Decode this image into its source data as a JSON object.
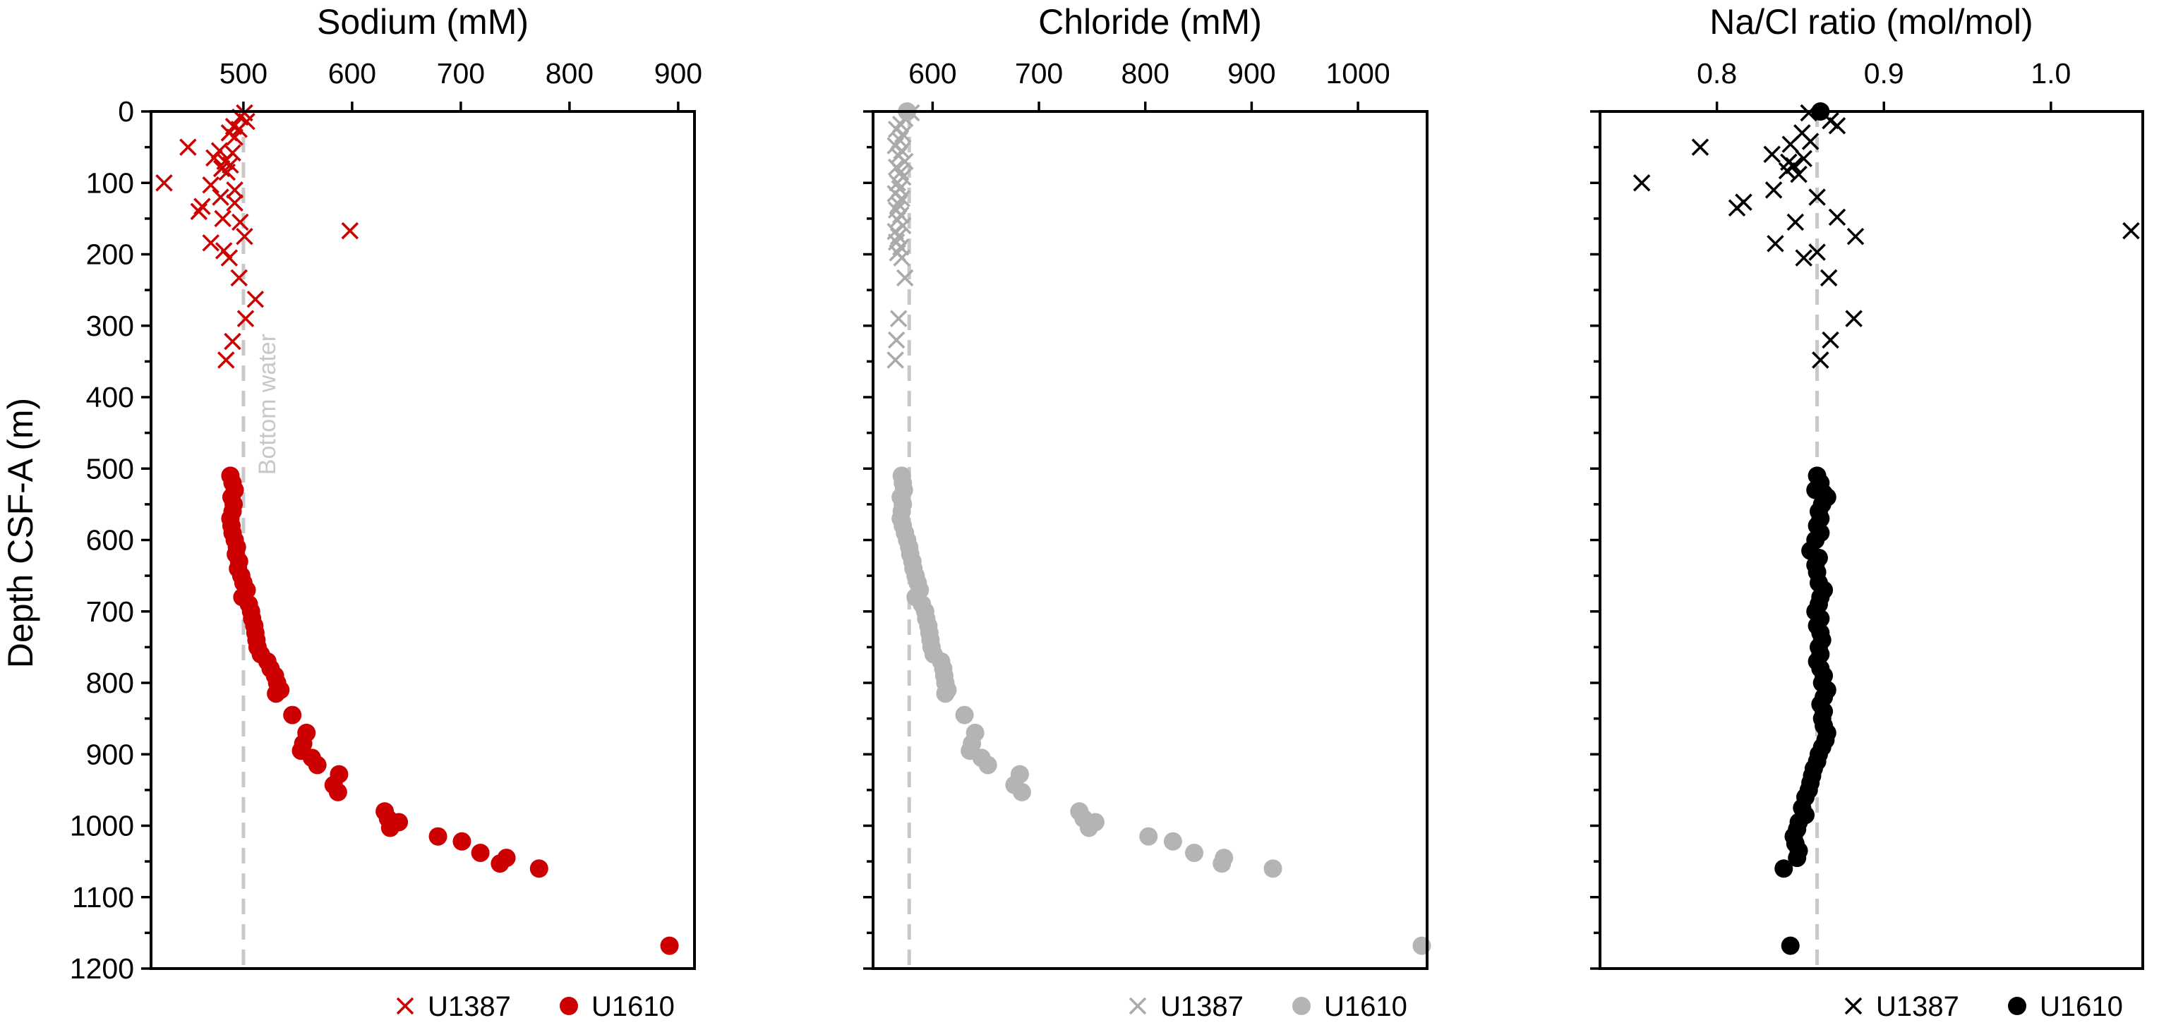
{
  "y_axis": {
    "label": "Depth CSF-A (m)",
    "range": [
      0,
      1200
    ],
    "ticks": [
      0,
      100,
      200,
      300,
      400,
      500,
      600,
      700,
      800,
      900,
      1000,
      1100,
      1200
    ],
    "inverted": true
  },
  "chart_data": [
    {
      "type": "scatter",
      "title": "Sodium (mM)",
      "xlim": [
        415,
        915
      ],
      "xticks": [
        500,
        600,
        700,
        800,
        900
      ],
      "reference_line": {
        "x": 500,
        "label": "Bottom water",
        "color": "#c8c8c8"
      },
      "legend_position": "bottom-right",
      "series": [
        {
          "name": "U1387",
          "marker": "x",
          "color": "#cc0000",
          "points": [
            [
              501,
              2
            ],
            [
              497,
              8
            ],
            [
              503,
              14
            ],
            [
              491,
              21
            ],
            [
              496,
              25
            ],
            [
              487,
              30
            ],
            [
              492,
              36
            ],
            [
              449,
              50
            ],
            [
              478,
              55
            ],
            [
              490,
              58
            ],
            [
              473,
              65
            ],
            [
              483,
              70
            ],
            [
              488,
              75
            ],
            [
              480,
              80
            ],
            [
              485,
              85
            ],
            [
              427,
              100
            ],
            [
              470,
              103
            ],
            [
              492,
              110
            ],
            [
              479,
              120
            ],
            [
              492,
              128
            ],
            [
              462,
              133
            ],
            [
              459,
              140
            ],
            [
              481,
              150
            ],
            [
              497,
              155
            ],
            [
              598,
              167
            ],
            [
              501,
              175
            ],
            [
              470,
              184
            ],
            [
              482,
              195
            ],
            [
              487,
              205
            ],
            [
              496,
              233
            ],
            [
              511,
              263
            ],
            [
              502,
              290
            ],
            [
              490,
              322
            ],
            [
              484,
              348
            ]
          ]
        },
        {
          "name": "U1610",
          "marker": "circle",
          "color": "#cc0000",
          "points": [
            [
              488,
              510
            ],
            [
              490,
              520
            ],
            [
              492,
              530
            ],
            [
              489,
              540
            ],
            [
              491,
              550
            ],
            [
              490,
              560
            ],
            [
              488,
              570
            ],
            [
              489,
              580
            ],
            [
              490,
              590
            ],
            [
              492,
              600
            ],
            [
              494,
              610
            ],
            [
              493,
              620
            ],
            [
              496,
              630
            ],
            [
              495,
              640
            ],
            [
              498,
              650
            ],
            [
              500,
              660
            ],
            [
              503,
              670
            ],
            [
              499,
              680
            ],
            [
              505,
              690
            ],
            [
              507,
              700
            ],
            [
              508,
              710
            ],
            [
              510,
              720
            ],
            [
              511,
              730
            ],
            [
              512,
              740
            ],
            [
              513,
              750
            ],
            [
              516,
              760
            ],
            [
              522,
              770
            ],
            [
              525,
              780
            ],
            [
              529,
              790
            ],
            [
              531,
              800
            ],
            [
              534,
              810
            ],
            [
              530,
              815
            ],
            [
              545,
              845
            ],
            [
              558,
              870
            ],
            [
              555,
              885
            ],
            [
              553,
              895
            ],
            [
              563,
              905
            ],
            [
              568,
              915
            ],
            [
              588,
              928
            ],
            [
              583,
              943
            ],
            [
              587,
              953
            ],
            [
              630,
              980
            ],
            [
              633,
              990
            ],
            [
              643,
              995
            ],
            [
              635,
              1003
            ],
            [
              679,
              1015
            ],
            [
              701,
              1022
            ],
            [
              718,
              1038
            ],
            [
              742,
              1045
            ],
            [
              736,
              1053
            ],
            [
              772,
              1060
            ],
            [
              892,
              1168
            ]
          ]
        }
      ]
    },
    {
      "type": "scatter",
      "title": "Chloride (mM)",
      "xlim": [
        544,
        1065
      ],
      "xticks": [
        600,
        700,
        800,
        900,
        1000
      ],
      "reference_line": {
        "x": 578,
        "color": "#c8c8c8"
      },
      "legend_position": "bottom-right",
      "series": [
        {
          "name": "U1387",
          "marker": "x",
          "color": "#aaaaaa",
          "points": [
            [
              580,
              2
            ],
            [
              574,
              10
            ],
            [
              570,
              18
            ],
            [
              566,
              25
            ],
            [
              572,
              32
            ],
            [
              569,
              40
            ],
            [
              565,
              48
            ],
            [
              571,
              55
            ],
            [
              568,
              62
            ],
            [
              574,
              70
            ],
            [
              566,
              78
            ],
            [
              570,
              85
            ],
            [
              572,
              92
            ],
            [
              567,
              100
            ],
            [
              569,
              108
            ],
            [
              565,
              115
            ],
            [
              571,
              122
            ],
            [
              568,
              130
            ],
            [
              566,
              138
            ],
            [
              570,
              145
            ],
            [
              567,
              152
            ],
            [
              572,
              160
            ],
            [
              565,
              168
            ],
            [
              568,
              175
            ],
            [
              566,
              183
            ],
            [
              570,
              190
            ],
            [
              567,
              198
            ],
            [
              571,
              205
            ],
            [
              574,
              233
            ],
            [
              568,
              290
            ],
            [
              566,
              320
            ],
            [
              565,
              348
            ]
          ]
        },
        {
          "name": "U1610",
          "marker": "circle",
          "color": "#b4b4b4",
          "points": [
            [
              576,
              0
            ],
            [
              571,
              510
            ],
            [
              572,
              520
            ],
            [
              573,
              530
            ],
            [
              570,
              540
            ],
            [
              572,
              550
            ],
            [
              571,
              560
            ],
            [
              570,
              570
            ],
            [
              572,
              580
            ],
            [
              574,
              590
            ],
            [
              576,
              600
            ],
            [
              578,
              610
            ],
            [
              579,
              620
            ],
            [
              581,
              630
            ],
            [
              582,
              640
            ],
            [
              584,
              650
            ],
            [
              586,
              660
            ],
            [
              588,
              670
            ],
            [
              584,
              680
            ],
            [
              590,
              690
            ],
            [
              593,
              700
            ],
            [
              594,
              710
            ],
            [
              596,
              720
            ],
            [
              597,
              730
            ],
            [
              598,
              740
            ],
            [
              599,
              750
            ],
            [
              601,
              760
            ],
            [
              608,
              770
            ],
            [
              610,
              780
            ],
            [
              611,
              790
            ],
            [
              612,
              800
            ],
            [
              614,
              810
            ],
            [
              612,
              815
            ],
            [
              630,
              845
            ],
            [
              640,
              870
            ],
            [
              637,
              885
            ],
            [
              635,
              895
            ],
            [
              646,
              905
            ],
            [
              652,
              915
            ],
            [
              682,
              928
            ],
            [
              677,
              943
            ],
            [
              684,
              953
            ],
            [
              738,
              980
            ],
            [
              742,
              990
            ],
            [
              753,
              995
            ],
            [
              747,
              1003
            ],
            [
              803,
              1015
            ],
            [
              826,
              1022
            ],
            [
              846,
              1038
            ],
            [
              874,
              1045
            ],
            [
              872,
              1053
            ],
            [
              920,
              1060
            ],
            [
              1060,
              1168
            ]
          ]
        }
      ]
    },
    {
      "type": "scatter",
      "title": "Na/Cl ratio (mol/mol)",
      "xlim": [
        0.73,
        1.055
      ],
      "xticks": [
        0.8,
        0.9,
        1.0
      ],
      "xtick_labels": [
        "0.8",
        "0.9",
        "1.0"
      ],
      "reference_line": {
        "x": 0.86,
        "color": "#c8c8c8"
      },
      "legend_position": "bottom-right",
      "series": [
        {
          "name": "U1387",
          "marker": "x",
          "color": "#000000",
          "points": [
            [
              0.855,
              2
            ],
            [
              0.868,
              13
            ],
            [
              0.872,
              20
            ],
            [
              0.851,
              30
            ],
            [
              0.856,
              42
            ],
            [
              0.844,
              46
            ],
            [
              0.79,
              50
            ],
            [
              0.833,
              60
            ],
            [
              0.852,
              66
            ],
            [
              0.843,
              71
            ],
            [
              0.846,
              76
            ],
            [
              0.842,
              83
            ],
            [
              0.849,
              88
            ],
            [
              0.755,
              100
            ],
            [
              0.834,
              110
            ],
            [
              0.86,
              120
            ],
            [
              0.816,
              127
            ],
            [
              0.812,
              135
            ],
            [
              0.872,
              148
            ],
            [
              0.847,
              155
            ],
            [
              1.048,
              167
            ],
            [
              0.883,
              175
            ],
            [
              0.835,
              185
            ],
            [
              0.86,
              197
            ],
            [
              0.852,
              205
            ],
            [
              0.867,
              233
            ],
            [
              0.882,
              290
            ],
            [
              0.868,
              320
            ],
            [
              0.862,
              348
            ]
          ]
        },
        {
          "name": "U1610",
          "marker": "circle",
          "color": "#000000",
          "points": [
            [
              0.862,
              0
            ],
            [
              0.86,
              510
            ],
            [
              0.862,
              520
            ],
            [
              0.859,
              530
            ],
            [
              0.864,
              535
            ],
            [
              0.866,
              540
            ],
            [
              0.863,
              550
            ],
            [
              0.861,
              560
            ],
            [
              0.862,
              570
            ],
            [
              0.86,
              580
            ],
            [
              0.862,
              590
            ],
            [
              0.859,
              600
            ],
            [
              0.856,
              615
            ],
            [
              0.861,
              625
            ],
            [
              0.859,
              635
            ],
            [
              0.86,
              645
            ],
            [
              0.861,
              660
            ],
            [
              0.864,
              670
            ],
            [
              0.862,
              680
            ],
            [
              0.861,
              690
            ],
            [
              0.859,
              700
            ],
            [
              0.862,
              710
            ],
            [
              0.86,
              720
            ],
            [
              0.862,
              730
            ],
            [
              0.863,
              740
            ],
            [
              0.861,
              750
            ],
            [
              0.862,
              760
            ],
            [
              0.86,
              770
            ],
            [
              0.862,
              780
            ],
            [
              0.864,
              790
            ],
            [
              0.863,
              800
            ],
            [
              0.866,
              810
            ],
            [
              0.864,
              820
            ],
            [
              0.862,
              830
            ],
            [
              0.864,
              840
            ],
            [
              0.863,
              850
            ],
            [
              0.864,
              860
            ],
            [
              0.866,
              870
            ],
            [
              0.865,
              880
            ],
            [
              0.863,
              890
            ],
            [
              0.861,
              900
            ],
            [
              0.86,
              910
            ],
            [
              0.858,
              920
            ],
            [
              0.857,
              930
            ],
            [
              0.856,
              940
            ],
            [
              0.855,
              950
            ],
            [
              0.853,
              960
            ],
            [
              0.851,
              975
            ],
            [
              0.853,
              985
            ],
            [
              0.849,
              995
            ],
            [
              0.848,
              1005
            ],
            [
              0.846,
              1015
            ],
            [
              0.847,
              1025
            ],
            [
              0.849,
              1035
            ],
            [
              0.848,
              1045
            ],
            [
              0.84,
              1060
            ],
            [
              0.844,
              1168
            ]
          ]
        }
      ]
    }
  ]
}
